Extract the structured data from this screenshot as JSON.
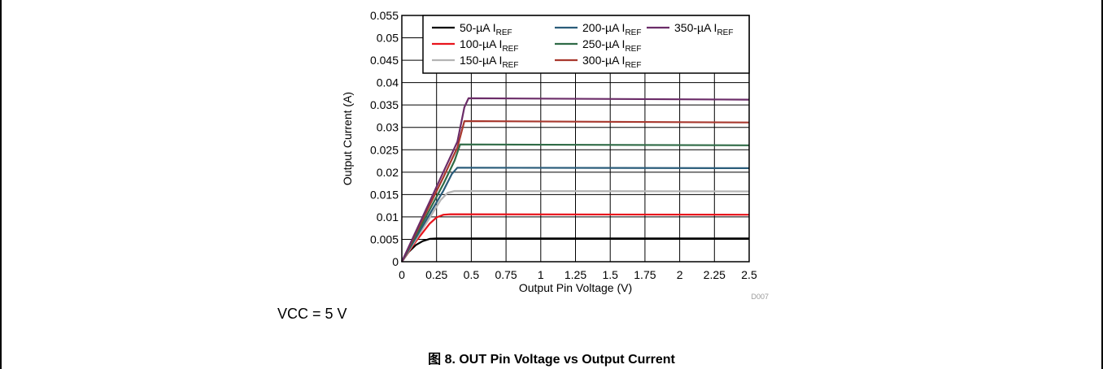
{
  "figure": {
    "caption": "图 8. OUT Pin Voltage vs Output Current",
    "condition": "VCC = 5 V",
    "figure_id": "D007"
  },
  "legend_subscript": "REF",
  "chart_data": {
    "type": "line",
    "title": "",
    "xlabel": "Output Pin Voltage (V)",
    "ylabel": "Output Current (A)",
    "xlim": [
      0,
      2.5
    ],
    "ylim": [
      0,
      0.055
    ],
    "xticks": [
      "0",
      "0.25",
      "0.5",
      "0.75",
      "1",
      "1.25",
      "1.5",
      "1.75",
      "2",
      "2.25",
      "2.5"
    ],
    "yticks": [
      "0",
      "0.005",
      "0.01",
      "0.015",
      "0.02",
      "0.025",
      "0.03",
      "0.035",
      "0.04",
      "0.045",
      "0.05",
      "0.055"
    ],
    "grid": true,
    "legend_position": "top-right",
    "series": [
      {
        "name": "50-µA I",
        "color": "#000000",
        "x": [
          0,
          0.05,
          0.1,
          0.15,
          0.2,
          0.25,
          0.3,
          2.5
        ],
        "y": [
          0,
          0.0022,
          0.0037,
          0.0046,
          0.0051,
          0.0052,
          0.0052,
          0.0052
        ]
      },
      {
        "name": "100-µA I",
        "color": "#e8141c",
        "x": [
          0,
          0.1,
          0.2,
          0.25,
          0.3,
          0.35,
          2.5
        ],
        "y": [
          0,
          0.0045,
          0.0085,
          0.0099,
          0.0105,
          0.0106,
          0.0105
        ]
      },
      {
        "name": "150-µA I",
        "color": "#b4b4b4",
        "x": [
          0,
          0.1,
          0.2,
          0.28,
          0.33,
          0.38,
          2.5
        ],
        "y": [
          0,
          0.0049,
          0.0098,
          0.0138,
          0.0154,
          0.0158,
          0.0157
        ]
      },
      {
        "name": "200-µA I",
        "color": "#2a5c7a",
        "x": [
          0,
          0.1,
          0.2,
          0.3,
          0.36,
          0.4,
          2.5
        ],
        "y": [
          0,
          0.0053,
          0.0106,
          0.0159,
          0.0196,
          0.021,
          0.0209
        ]
      },
      {
        "name": "250-µA I",
        "color": "#2f6b46",
        "x": [
          0,
          0.1,
          0.2,
          0.3,
          0.38,
          0.42,
          2.5
        ],
        "y": [
          0,
          0.0058,
          0.0116,
          0.0174,
          0.0226,
          0.0262,
          0.026
        ]
      },
      {
        "name": "300-µA I",
        "color": "#a8382e",
        "x": [
          0,
          0.1,
          0.2,
          0.3,
          0.4,
          0.45,
          2.5
        ],
        "y": [
          0,
          0.0063,
          0.0126,
          0.0189,
          0.0255,
          0.0314,
          0.0311
        ]
      },
      {
        "name": "350-µA I",
        "color": "#6b2c68",
        "x": [
          0,
          0.1,
          0.2,
          0.3,
          0.4,
          0.45,
          0.48,
          2.5
        ],
        "y": [
          0,
          0.0067,
          0.0134,
          0.0201,
          0.0268,
          0.0345,
          0.0365,
          0.0362
        ]
      }
    ]
  }
}
